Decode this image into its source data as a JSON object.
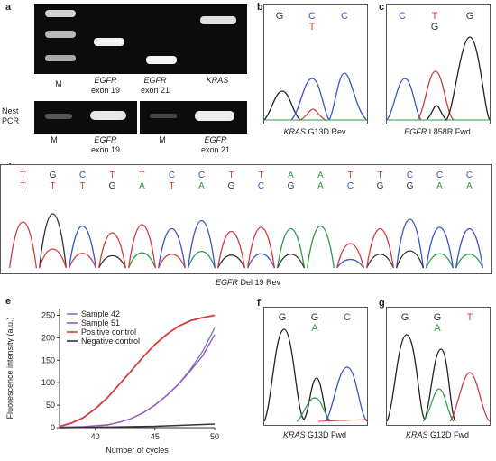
{
  "panel_a": {
    "label": "a",
    "lanes_top": [
      {
        "id": "M",
        "lines": [
          "M"
        ]
      },
      {
        "id": "egfr19",
        "lines": [
          "EGFR",
          "exon 19"
        ]
      },
      {
        "id": "egfr21",
        "lines": [
          "EGFR",
          "exon 21"
        ]
      },
      {
        "id": "kras",
        "lines": [
          "KRAS"
        ]
      }
    ],
    "nest_label": [
      "Nest",
      "PCR"
    ],
    "lanes_bottom": [
      {
        "id": "M1",
        "lines": [
          "M"
        ]
      },
      {
        "id": "egfr19b",
        "lines": [
          "EGFR",
          "exon 19"
        ]
      },
      {
        "id": "M2",
        "lines": [
          "M"
        ]
      },
      {
        "id": "egfr21b",
        "lines": [
          "EGFR",
          "exon 21"
        ]
      }
    ]
  },
  "panel_b": {
    "label": "b",
    "bases_top": [
      "G",
      "C",
      "C"
    ],
    "bases_top_colors": [
      "#333333",
      "#3a55c8",
      "#3a55c8"
    ],
    "bases_mut": [
      "",
      "T",
      ""
    ],
    "bases_mut_colors": [
      "",
      "#d23c3c",
      ""
    ],
    "caption_gene": "KRAS",
    "caption_rest": " G13D Rev"
  },
  "panel_c": {
    "label": "c",
    "bases_top": [
      "C",
      "T",
      "G"
    ],
    "bases_top_colors": [
      "#3a55c8",
      "#d23c3c",
      "#333333"
    ],
    "bases_mut": [
      "",
      "G",
      ""
    ],
    "bases_mut_colors": [
      "",
      "#333333",
      ""
    ],
    "caption_gene": "EGFR",
    "caption_rest": " L858R Fwd"
  },
  "panel_d": {
    "label": "d",
    "row1": [
      "T",
      "G",
      "C",
      "T",
      "T",
      "C",
      "C",
      "T",
      "T",
      "A",
      "A",
      "T",
      "T",
      "C",
      "C",
      "C"
    ],
    "row2": [
      "T",
      "T",
      "T",
      "G",
      "A",
      "T",
      "A",
      "G",
      "C",
      "G",
      "A",
      "C",
      "G",
      "G",
      "A",
      "A"
    ],
    "caption_gene": "EGFR",
    "caption_rest": " Del 19 Rev"
  },
  "panel_e": {
    "label": "e",
    "legend": [
      "Sample 42",
      "Sample 51",
      "Positive control",
      "Negative control"
    ],
    "colors": {
      "s42": "#7a7fbf",
      "s51": "#9a55c4",
      "pos": "#d23c3c",
      "neg": "#333333"
    }
  },
  "panel_f": {
    "label": "f",
    "bases_top": [
      "G",
      "G",
      "C"
    ],
    "bases_top_colors": [
      "#333333",
      "#333333",
      "#3a55c8"
    ],
    "bases_mut": [
      "",
      "A",
      ""
    ],
    "bases_mut_colors": [
      "",
      "#2e9a4b",
      ""
    ],
    "caption_gene": "KRAS",
    "caption_rest": " G13D Fwd"
  },
  "panel_g": {
    "label": "g",
    "bases_top": [
      "G",
      "G",
      "T"
    ],
    "bases_top_colors": [
      "#333333",
      "#333333",
      "#d23c3c"
    ],
    "bases_mut": [
      "",
      "A",
      ""
    ],
    "bases_mut_colors": [
      "",
      "#2e9a4b",
      ""
    ],
    "caption_gene": "KRAS",
    "caption_rest": " G12D Fwd"
  },
  "chart_data": {
    "type": "line",
    "xlabel": "Number of cycles",
    "ylabel": "Fluorescence intensity (a.u.)",
    "xlim": [
      37,
      50
    ],
    "ylim": [
      0,
      265
    ],
    "xticks": [
      40,
      45,
      50
    ],
    "yticks": [
      0,
      50,
      100,
      150,
      200,
      250
    ],
    "grid": false,
    "legend_position": "top-left",
    "series": [
      {
        "name": "Sample 42",
        "x": [
          37,
          39,
          41,
          42,
          43,
          44,
          45,
          46,
          47,
          48,
          49,
          50
        ],
        "y": [
          1,
          2,
          6,
          12,
          20,
          33,
          50,
          72,
          98,
          130,
          170,
          222
        ]
      },
      {
        "name": "Sample 51",
        "x": [
          37,
          39,
          41,
          42,
          43,
          44,
          45,
          46,
          47,
          48,
          49,
          50
        ],
        "y": [
          1,
          2,
          6,
          12,
          20,
          33,
          50,
          72,
          97,
          127,
          160,
          207
        ]
      },
      {
        "name": "Positive control",
        "x": [
          37,
          38,
          39,
          40,
          41,
          42,
          43,
          44,
          45,
          46,
          47,
          48,
          49,
          50
        ],
        "y": [
          3,
          10,
          22,
          42,
          66,
          96,
          126,
          157,
          185,
          208,
          226,
          238,
          245,
          250
        ]
      },
      {
        "name": "Negative control",
        "x": [
          37,
          40,
          45,
          50
        ],
        "y": [
          0,
          1,
          3,
          8
        ]
      }
    ]
  }
}
